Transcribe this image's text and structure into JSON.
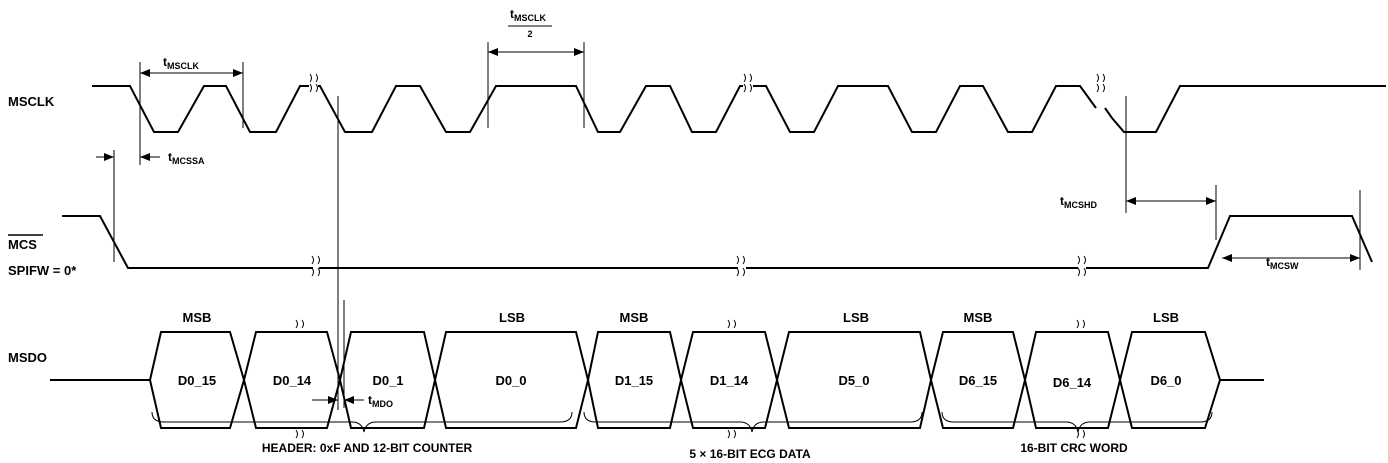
{
  "signals": {
    "msclk": "MSCLK",
    "mcs": "MCS",
    "spifw": "SPIFW = 0*",
    "msdo": "MSDO"
  },
  "timing": {
    "t": "t",
    "msclk_sub": "MSCLK",
    "half_den": "2",
    "mcssa_sub": "MCSSA",
    "mcshd_sub": "MCSHD",
    "mcsw_sub": "MCSW",
    "mdo_sub": "MDO"
  },
  "cells": {
    "c1": "D0_15",
    "c2": "D0_14",
    "c3": "D0_1",
    "c4": "D0_0",
    "c5": "D1_15",
    "c6": "D1_14",
    "c7": "D5_0",
    "c8": "D6_15",
    "c9": "D6_14",
    "c10": "D6_0"
  },
  "bit_labels": {
    "msb": "MSB",
    "lsb": "LSB"
  },
  "groups": {
    "header": "HEADER: 0xF AND 12-BIT COUNTER",
    "ecg": "5 × 16-BIT ECG DATA",
    "crc": "16-BIT CRC WORD"
  }
}
